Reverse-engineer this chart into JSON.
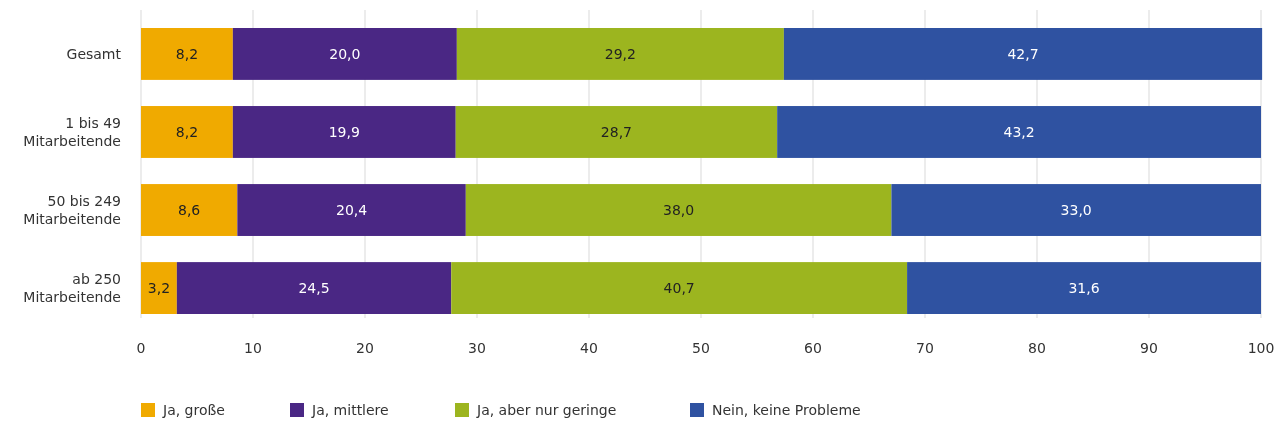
{
  "chart_data": {
    "type": "bar",
    "orientation": "horizontal",
    "stacked": true,
    "categories": [
      "Gesamt",
      "1 bis 49 Mitarbeitende",
      "50 bis 249 Mitarbeitende",
      "ab 250 Mitarbeitende"
    ],
    "series": [
      {
        "name": "Ja, große",
        "color": "#f0aa00",
        "values": [
          8.2,
          8.2,
          8.6,
          3.2
        ],
        "value_labels": [
          "8,2",
          "8,2",
          "8,6",
          "3,2"
        ]
      },
      {
        "name": "Ja, mittlere",
        "color": "#4a2784",
        "values": [
          20.0,
          19.9,
          20.4,
          24.5
        ],
        "value_labels": [
          "20,0",
          "19,9",
          "20,4",
          "24,5"
        ]
      },
      {
        "name": "Ja, aber nur geringe",
        "color": "#9cb51f",
        "values": [
          29.2,
          28.7,
          38.0,
          40.7
        ],
        "value_labels": [
          "29,2",
          "28,7",
          "38,0",
          "40,7"
        ]
      },
      {
        "name": "Nein, keine Probleme",
        "color": "#2f52a1",
        "values": [
          42.7,
          43.2,
          33.0,
          31.6
        ],
        "value_labels": [
          "42,7",
          "43,2",
          "33,0",
          "31,6"
        ]
      }
    ],
    "xlim": [
      0,
      100
    ],
    "xticks": [
      0,
      10,
      20,
      30,
      40,
      50,
      60,
      70,
      80,
      90,
      100
    ],
    "grid": "x",
    "legend": "bottom"
  }
}
